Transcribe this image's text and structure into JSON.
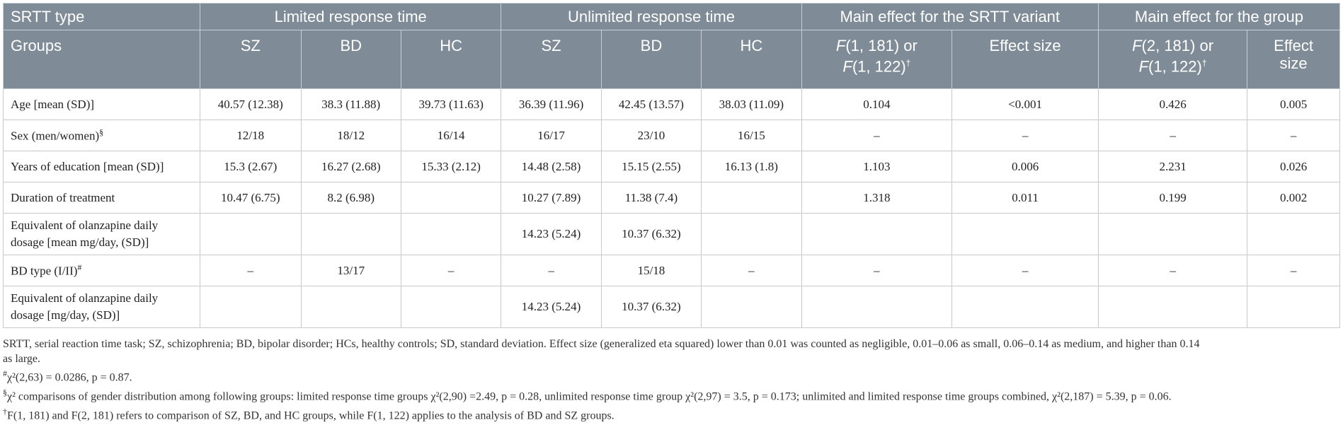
{
  "header": {
    "srtt_type": "SRTT type",
    "limited": "Limited response time",
    "unlimited": "Unlimited response time",
    "main_srtt": "Main effect for the SRTT variant",
    "main_group": "Main effect for the group",
    "groups": "Groups",
    "sz": "SZ",
    "bd": "BD",
    "hc": "HC",
    "f_srtt_a": "F",
    "f_srtt_b": "(1, 181) or",
    "f_srtt_c": "F",
    "f_srtt_d": "(1, 122)",
    "dagger": "†",
    "effect_size": "Effect size",
    "f_group_a": "F",
    "f_group_b": "(2, 181) or",
    "f_group_c": "F",
    "f_group_d": "(1, 122)",
    "effect_l1": "Effect",
    "effect_l2": "size"
  },
  "rows": {
    "r1": {
      "label": "Age [mean (SD)]",
      "c": [
        "40.57 (12.38)",
        "38.3 (11.88)",
        "39.73 (11.63)",
        "36.39 (11.96)",
        "42.45 (13.57)",
        "38.03 (11.09)",
        "0.104",
        "<0.001",
        "0.426",
        "0.005"
      ]
    },
    "r2": {
      "label": "Sex (men/women)",
      "sup": "§",
      "c": [
        "12/18",
        "18/12",
        "16/14",
        "16/17",
        "23/10",
        "16/15",
        "–",
        "–",
        "–",
        "–"
      ]
    },
    "r3": {
      "label": "Years of education [mean (SD)]",
      "c": [
        "15.3 (2.67)",
        "16.27 (2.68)",
        "15.33 (2.12)",
        "14.48 (2.58)",
        "15.15 (2.55)",
        "16.13 (1.8)",
        "1.103",
        "0.006",
        "2.231",
        "0.026"
      ]
    },
    "r4": {
      "label": "Duration of treatment",
      "c": [
        "10.47 (6.75)",
        "8.2 (6.98)",
        "",
        "10.27 (7.89)",
        "11.38 (7.4)",
        "",
        "1.318",
        "0.011",
        "0.199",
        "0.002"
      ]
    },
    "r5": {
      "label1": "Equivalent of olanzapine daily",
      "label2": "dosage [mean mg/day, (SD)]",
      "c": [
        "",
        "",
        "",
        "14.23 (5.24)",
        "10.37 (6.32)",
        "",
        "",
        "",
        "",
        ""
      ]
    },
    "r6": {
      "label": "BD type (I/II)",
      "sup": "#",
      "c": [
        "–",
        "13/17",
        "–",
        "–",
        "15/18",
        "–",
        "–",
        "–",
        "–",
        "–"
      ]
    },
    "r7": {
      "label1": "Equivalent of olanzapine daily",
      "label2": "dosage [mg/day, (SD)]",
      "c": [
        "",
        "",
        "",
        "14.23 (5.24)",
        "10.37 (6.32)",
        "",
        "",
        "",
        "",
        ""
      ]
    }
  },
  "notes": {
    "n1a": "SRTT, serial reaction time task; SZ, schizophrenia; BD, bipolar disorder; HCs, healthy controls; SD, standard deviation. Effect size (generalized eta squared) lower than 0.01 was counted as negligible, 0.01–0.06 as small, 0.06–0.14 as medium, and higher than 0.14",
    "n1b": "as large.",
    "n2_mark": "#",
    "n2_text": "χ²(2,63) = 0.0286, p = 0.87.",
    "n3_mark": "§",
    "n3_text": "χ² comparisons of gender distribution among following groups: limited response time groups χ²(2,90) =2.49, p = 0.28, unlimited response time group χ²(2,97) = 3.5, p = 0.173; unlimited and limited response time groups combined, χ²(2,187) = 5.39, p = 0.06.",
    "n4_mark": "†",
    "n4_text": "F(1, 181) and F(2, 181) refers to comparison of SZ, BD, and HC groups, while F(1, 122) applies to the analysis of BD and SZ groups."
  }
}
